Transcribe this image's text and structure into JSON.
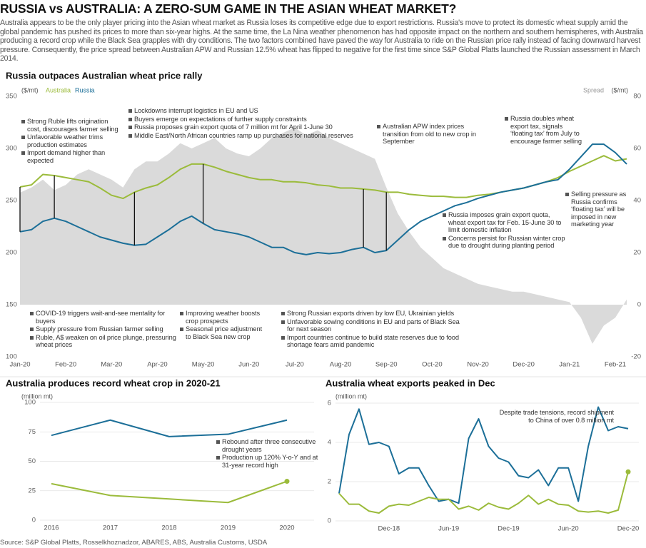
{
  "header": {
    "title": "RUSSIA vs AUSTRALIA: A ZERO-SUM GAME IN THE ASIAN WHEAT MARKET?",
    "intro": "Australia appears to be the only player pricing into the Asian wheat market as Russia loses its competitive edge due to export restrictions. Russia's move to protect its domestic wheat supply amid the global pandemic has pushed its prices to more than six-year highs. At the same time, the La Nina weather phenomenon has had opposite impact on the northern and southern hemispheres, with Australia producing a record crop while the Black Sea grapples with dry conditions. The two factors combined have paved the way for Australia to ride on the Russian price rally instead of facing downward harvest pressure. Consequently, the price spread between Australian APW and Russian 12.5% wheat has flipped to negative for the first time since S&P Global Platts launched the Russian assessment in March 2014."
  },
  "chart_data": [
    {
      "type": "line",
      "title": "Russia outpaces Australian wheat price rally",
      "y_label": "($/mt)",
      "y2_label": "($/mt)",
      "categories": [
        "Jan-20",
        null,
        null,
        null,
        "Feb-20",
        null,
        null,
        null,
        "Mar-20",
        null,
        null,
        null,
        "Apr-20",
        null,
        null,
        null,
        "May-20",
        null,
        null,
        null,
        "Jun-20",
        null,
        null,
        null,
        "Jul-20",
        null,
        null,
        null,
        "Aug-20",
        null,
        null,
        null,
        "Sep-20",
        null,
        null,
        null,
        "Oct-20",
        null,
        null,
        null,
        "Nov-20",
        null,
        null,
        null,
        "Dec-20",
        null,
        null,
        null,
        "Jan-21",
        null,
        null,
        null,
        "Feb-21",
        null
      ],
      "series": [
        {
          "name": "Spread",
          "color": "#dadada",
          "axis": "y2",
          "fill": true,
          "values": [
            43,
            45,
            48,
            44,
            46,
            50,
            52,
            50,
            48,
            45,
            52,
            55,
            55,
            58,
            62,
            60,
            62,
            64,
            60,
            58,
            57,
            60,
            64,
            66,
            68,
            65,
            67,
            64,
            62,
            60,
            58,
            56,
            45,
            35,
            28,
            22,
            18,
            14,
            12,
            10,
            8,
            7,
            6,
            5,
            5,
            4,
            3,
            2,
            1,
            -5,
            -15,
            -8,
            -5,
            2
          ]
        },
        {
          "name": "Australia",
          "color": "#9bbb3b",
          "values": [
            263,
            265,
            275,
            274,
            272,
            270,
            268,
            262,
            255,
            252,
            258,
            262,
            265,
            272,
            280,
            285,
            285,
            282,
            278,
            275,
            272,
            270,
            270,
            268,
            268,
            267,
            265,
            264,
            262,
            262,
            261,
            260,
            258,
            258,
            256,
            255,
            254,
            254,
            253,
            253,
            255,
            256,
            258,
            260,
            262,
            265,
            268,
            272,
            278,
            283,
            288,
            293,
            288,
            290
          ]
        },
        {
          "name": "Russia",
          "color": "#1c6f98",
          "values": [
            220,
            222,
            230,
            233,
            230,
            225,
            220,
            215,
            212,
            209,
            207,
            208,
            215,
            222,
            230,
            235,
            228,
            222,
            220,
            218,
            215,
            210,
            205,
            205,
            200,
            198,
            200,
            199,
            200,
            203,
            205,
            200,
            202,
            212,
            222,
            230,
            235,
            240,
            245,
            248,
            252,
            255,
            258,
            260,
            262,
            265,
            268,
            270,
            280,
            292,
            304,
            304,
            296,
            285
          ]
        }
      ],
      "ylim": [
        100,
        350
      ],
      "yticks": [
        100,
        150,
        200,
        250,
        300,
        350
      ],
      "y2lim": [
        -20,
        80
      ],
      "y2ticks": [
        -20,
        0,
        20,
        40,
        60,
        80
      ],
      "grid": false,
      "annotations": [
        [
          "Strong Ruble lifts origination cost, discourages farmer selling",
          "Unfavorable weather trims production estimates",
          "Import demand higher than expected"
        ],
        [
          "Lockdowns interrupt logistics in EU and US",
          "Buyers emerge on expectations of further supply constraints",
          "Russia proposes grain export quota of 7 million mt for April 1-June 30",
          "Middle East/North African countries ramp up purchases for national reserves"
        ],
        [
          "Australian APW index prices transition from old to new crop in September"
        ],
        [
          "Russia doubles wheat export tax, signals ‘floating tax’ from July to encourage farmer selling"
        ],
        [
          "Selling pressure as Russia confirms ‘floating tax’ will be imposed in new marketing year"
        ],
        [
          "Russia imposes grain export quota, wheat export tax for Feb. 15-June 30 to limit domestic inflation",
          "Concerns persist for Russian winter crop due to drought during planting period"
        ],
        [
          "COVID-19 triggers wait-and-see mentality for buyers",
          "Supply pressure from Russian farmer selling",
          "Ruble, A$ weaken on oil price plunge, pressuring wheat prices"
        ],
        [
          "Improving weather boosts crop prospects",
          "Seasonal price adjustment to Black Sea new crop"
        ],
        [
          "Strong Russian exports driven by low EU, Ukrainian yields",
          "Unfavorable sowing conditions in EU and parts of Black Sea for next season",
          "Import countries continue to build state reserves due to food shortage fears amid pandemic"
        ]
      ]
    },
    {
      "type": "line",
      "title": "Australia produces record wheat crop in 2020-21",
      "y_label": "(million mt)",
      "categories": [
        "2016",
        "2017",
        "2018",
        "2019",
        "2020"
      ],
      "series": [
        {
          "color": "#1c6f98",
          "values": [
            72,
            85,
            71,
            73,
            85
          ]
        },
        {
          "color": "#9bbb3b",
          "values": [
            31,
            21,
            18,
            15,
            33
          ],
          "end_marker": true
        }
      ],
      "ylim": [
        0,
        100
      ],
      "yticks": [
        0,
        25,
        50,
        75,
        100
      ],
      "grid": true,
      "annotations": [
        [
          "Rebound after three consecutive drought years",
          "Production up 120% Y-o-Y and at 31-year record high"
        ]
      ]
    },
    {
      "type": "line",
      "title": "Australia wheat exports peaked in Dec",
      "y_label": "(million mt)",
      "categories": [
        null,
        null,
        null,
        null,
        null,
        "Dec-18",
        null,
        null,
        null,
        null,
        null,
        "Jun-19",
        null,
        null,
        null,
        null,
        null,
        "Dec-19",
        null,
        null,
        null,
        null,
        null,
        "Jun-20",
        null,
        null,
        null,
        null,
        null,
        "Dec-20"
      ],
      "series": [
        {
          "color": "#1c6f98",
          "values": [
            1.4,
            4.4,
            5.7,
            3.9,
            4.0,
            3.8,
            2.4,
            2.7,
            2.7,
            1.8,
            1.0,
            1.1,
            0.9,
            4.2,
            5.2,
            3.8,
            3.2,
            3.0,
            2.3,
            2.2,
            2.6,
            1.8,
            2.7,
            2.7,
            1.0,
            3.8,
            5.8,
            4.6,
            4.8,
            4.7
          ]
        },
        {
          "color": "#9bbb3b",
          "values": [
            1.4,
            0.85,
            0.85,
            0.5,
            0.4,
            0.75,
            0.85,
            0.8,
            1.0,
            1.2,
            1.1,
            1.1,
            0.6,
            0.75,
            0.55,
            0.9,
            0.7,
            0.6,
            0.9,
            1.3,
            0.85,
            1.1,
            0.85,
            0.8,
            0.5,
            0.45,
            0.5,
            0.4,
            0.55,
            2.5
          ],
          "end_marker": true
        }
      ],
      "ylim": [
        0,
        6
      ],
      "yticks": [
        0,
        2,
        4,
        6
      ],
      "grid": true,
      "annotations": [
        [
          "Despite trade tensions, record shipment to China of over 0.8 million mt"
        ]
      ]
    }
  ],
  "footer": {
    "source": "Source: S&P Global Platts, Rosselkhoznadzor, ABARES, ABS, Australia Customs, USDA"
  }
}
